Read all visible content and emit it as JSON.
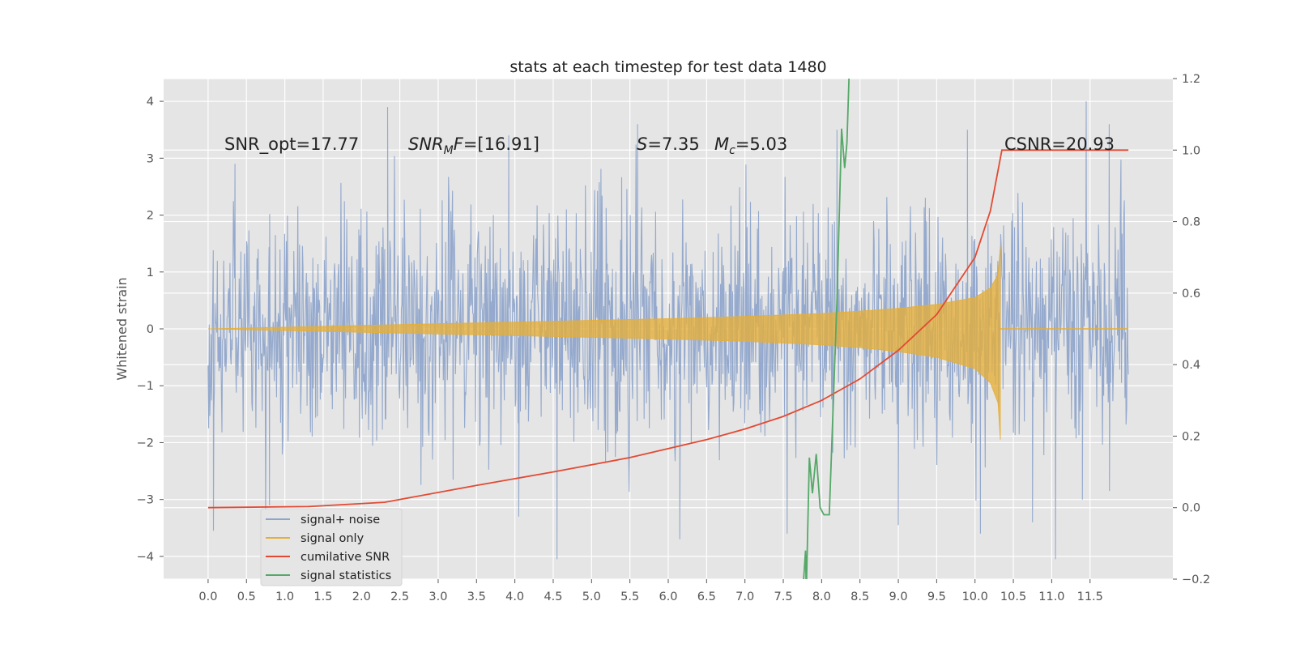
{
  "chart_data": {
    "type": "line",
    "title": "stats at each timestep for test data 1480",
    "ylabel": "Whitened strain",
    "xlabel": "",
    "xlim": [
      -0.58,
      12.58
    ],
    "ylim": [
      -4.4,
      4.4
    ],
    "y2lim": [
      -0.2,
      1.2
    ],
    "x_ticks": [
      0.0,
      0.5,
      1.0,
      1.5,
      2.0,
      2.5,
      3.0,
      3.5,
      4.0,
      4.5,
      5.0,
      5.5,
      6.0,
      6.5,
      7.0,
      7.5,
      8.0,
      8.5,
      9.0,
      9.5,
      10.0,
      10.5,
      11.0,
      11.5
    ],
    "x_tick_labels": [
      "0.0",
      "0.5",
      "1.0",
      "1.5",
      "2.0",
      "2.5",
      "3.0",
      "3.5",
      "4.0",
      "4.5",
      "5.0",
      "5.5",
      "6.0",
      "6.5",
      "7.0",
      "7.5",
      "8.0",
      "8.5",
      "9.0",
      "9.5",
      "10.0",
      "10.5",
      "11.0",
      "11.5"
    ],
    "y_ticks": [
      -4,
      -3,
      -2,
      -1,
      0,
      1,
      2,
      3,
      4
    ],
    "y_tick_labels": [
      "−4",
      "−3",
      "−2",
      "−1",
      "0",
      "1",
      "2",
      "3",
      "4"
    ],
    "y2_ticks": [
      -0.2,
      0.0,
      0.2,
      0.4,
      0.6,
      0.8,
      1.0,
      1.2
    ],
    "y2_tick_labels": [
      "−0.2",
      "0.0",
      "0.2",
      "0.4",
      "0.6",
      "0.8",
      "1.0",
      "1.2"
    ],
    "grid": true,
    "legend_position": "lower-left",
    "annotations": {
      "snr_opt": "SNR_opt=17.77",
      "snr_mf_sym": "SNR",
      "snr_mf_sub": "M",
      "snr_mf_sym2": "F",
      "snr_mf_val": "=[16.91]",
      "s_sym": "S",
      "s_val": "=7.35",
      "mc_sym": "M",
      "mc_sub": "c",
      "mc_val": "=5.03",
      "csnr": "CSNR=20.93"
    },
    "series": [
      {
        "name": "signal+ noise",
        "axis": "left",
        "color": "#8fa5cb",
        "style": "dense-noise",
        "x_range": [
          0.0,
          12.0
        ],
        "envelope_typical": [
          -2.0,
          2.0
        ],
        "max_peaks": [
          {
            "x": 0.35,
            "y": 2.9
          },
          {
            "x": 2.34,
            "y": 3.9
          },
          {
            "x": 3.92,
            "y": 3.4
          },
          {
            "x": 5.6,
            "y": 3.6
          },
          {
            "x": 8.2,
            "y": 3.5
          },
          {
            "x": 9.9,
            "y": 3.5
          },
          {
            "x": 11.45,
            "y": 4.0
          },
          {
            "x": 11.75,
            "y": 3.6
          }
        ],
        "min_peaks": [
          {
            "x": 0.07,
            "y": -3.55
          },
          {
            "x": 0.8,
            "y": -3.1
          },
          {
            "x": 4.05,
            "y": -3.3
          },
          {
            "x": 4.55,
            "y": -4.05
          },
          {
            "x": 6.15,
            "y": -3.7
          },
          {
            "x": 7.55,
            "y": -3.6
          },
          {
            "x": 9.0,
            "y": -3.45
          },
          {
            "x": 10.07,
            "y": -3.6
          },
          {
            "x": 10.75,
            "y": -3.4
          },
          {
            "x": 11.05,
            "y": -4.05
          },
          {
            "x": 11.4,
            "y": -3.0
          }
        ]
      },
      {
        "name": "signal only",
        "axis": "left",
        "color": "#e5ae38",
        "style": "chirp-envelope",
        "x": [
          0.0,
          1.0,
          2.0,
          3.0,
          4.0,
          5.0,
          6.0,
          7.0,
          8.0,
          8.5,
          9.0,
          9.5,
          10.0,
          10.2,
          10.3,
          10.33
        ],
        "upper": [
          0.0,
          0.03,
          0.06,
          0.09,
          0.12,
          0.15,
          0.18,
          0.22,
          0.27,
          0.31,
          0.36,
          0.43,
          0.55,
          0.72,
          0.95,
          1.45
        ],
        "lower": [
          0.0,
          -0.03,
          -0.06,
          -0.09,
          -0.12,
          -0.15,
          -0.18,
          -0.22,
          -0.28,
          -0.33,
          -0.4,
          -0.5,
          -0.7,
          -0.95,
          -1.3,
          -1.95
        ]
      },
      {
        "name": "cumilative SNR",
        "axis": "right",
        "color": "#e24a33",
        "x": [
          0.0,
          1.3,
          2.3,
          3.5,
          4.5,
          5.5,
          6.5,
          7.0,
          7.5,
          8.0,
          8.5,
          9.0,
          9.5,
          10.0,
          10.2,
          10.35,
          12.0
        ],
        "y": [
          0.0,
          0.003,
          0.015,
          0.062,
          0.1,
          0.14,
          0.19,
          0.22,
          0.255,
          0.3,
          0.36,
          0.44,
          0.54,
          0.7,
          0.83,
          1.0,
          1.0
        ]
      },
      {
        "name": "signal statistics",
        "axis": "right",
        "color": "#55a868",
        "x": [
          7.75,
          7.79,
          7.8,
          7.84,
          7.88,
          7.93,
          7.98,
          8.03,
          8.1,
          8.2,
          8.26,
          8.3,
          8.33,
          8.36
        ],
        "y": [
          -0.25,
          -0.12,
          -0.24,
          0.14,
          0.04,
          0.15,
          -0.0,
          -0.02,
          -0.02,
          0.58,
          1.06,
          0.95,
          1.02,
          1.22
        ]
      }
    ]
  }
}
